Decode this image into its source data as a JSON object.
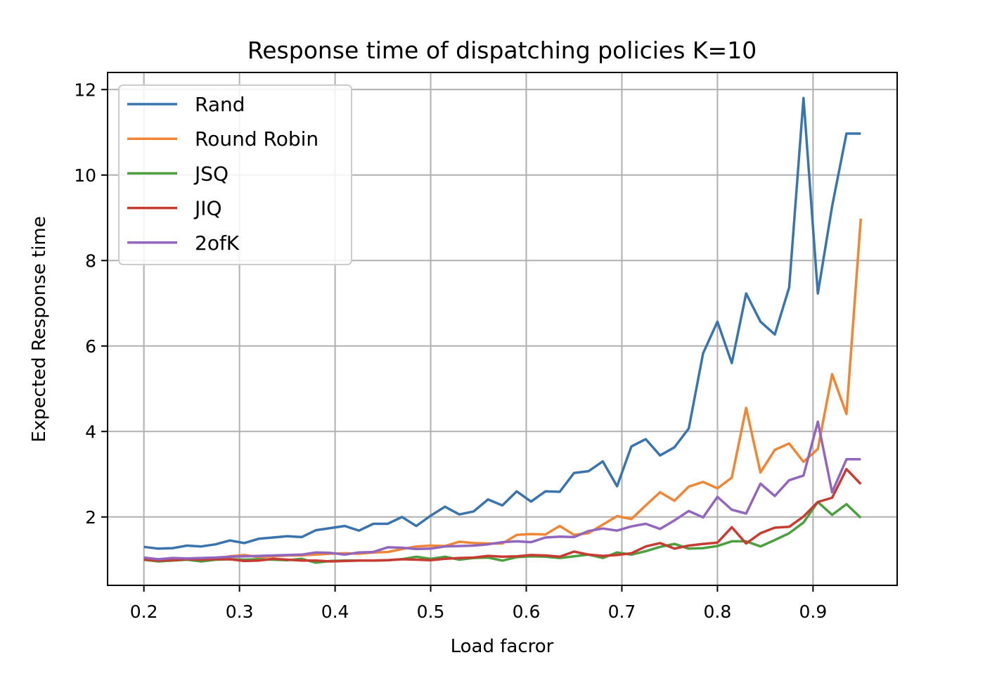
{
  "chart_data": {
    "type": "line",
    "title": "Response time of dispatching policies K=10",
    "xlabel": "Load facror",
    "ylabel": "Expected Response time",
    "xlim": [
      0.162,
      0.988
    ],
    "ylim": [
      0.4,
      12.4
    ],
    "xticks": [
      "0.2",
      "0.3",
      "0.4",
      "0.5",
      "0.6",
      "0.7",
      "0.8",
      "0.9"
    ],
    "yticks": [
      "2",
      "4",
      "6",
      "8",
      "10",
      "12"
    ],
    "grid": true,
    "legend_position": "upper-left",
    "x": [
      0.2,
      0.215,
      0.23,
      0.245,
      0.26,
      0.275,
      0.29,
      0.305,
      0.32,
      0.335,
      0.35,
      0.365,
      0.38,
      0.395,
      0.41,
      0.425,
      0.44,
      0.455,
      0.47,
      0.485,
      0.5,
      0.515,
      0.53,
      0.545,
      0.56,
      0.575,
      0.59,
      0.605,
      0.62,
      0.635,
      0.65,
      0.665,
      0.68,
      0.695,
      0.71,
      0.725,
      0.74,
      0.755,
      0.77,
      0.785,
      0.8,
      0.815,
      0.83,
      0.845,
      0.86,
      0.875,
      0.89,
      0.905,
      0.92,
      0.935,
      0.95
    ],
    "series": [
      {
        "name": "Rand",
        "color": "#3a74ad",
        "values": [
          1.3,
          1.26,
          1.27,
          1.33,
          1.31,
          1.36,
          1.45,
          1.39,
          1.49,
          1.52,
          1.55,
          1.53,
          1.69,
          1.74,
          1.79,
          1.68,
          1.84,
          1.84,
          2.0,
          1.79,
          2.03,
          2.24,
          2.06,
          2.13,
          2.41,
          2.27,
          2.6,
          2.36,
          2.6,
          2.59,
          3.03,
          3.07,
          3.3,
          2.72,
          3.65,
          3.82,
          3.44,
          3.63,
          4.07,
          5.83,
          6.57,
          5.6,
          7.23,
          6.57,
          6.27,
          7.37,
          11.8,
          7.23,
          9.27,
          10.97,
          10.97
        ]
      },
      {
        "name": "Round Robin",
        "color": "#ef8636",
        "values": [
          1.0,
          0.98,
          1.0,
          1.02,
          1.02,
          1.03,
          1.08,
          1.11,
          1.06,
          1.08,
          1.1,
          1.1,
          1.12,
          1.14,
          1.15,
          1.14,
          1.17,
          1.18,
          1.25,
          1.31,
          1.33,
          1.32,
          1.42,
          1.39,
          1.38,
          1.38,
          1.58,
          1.6,
          1.59,
          1.79,
          1.58,
          1.62,
          1.82,
          2.02,
          1.95,
          2.27,
          2.58,
          2.38,
          2.71,
          2.82,
          2.67,
          2.92,
          4.55,
          3.04,
          3.57,
          3.72,
          3.29,
          3.59,
          5.34,
          4.41,
          8.98
        ]
      },
      {
        "name": "JSQ",
        "color": "#4b9f3e",
        "values": [
          1.0,
          0.96,
          0.98,
          1.0,
          0.96,
          1.0,
          1.01,
          1.0,
          1.01,
          1.0,
          0.99,
          1.02,
          0.93,
          0.97,
          0.98,
          0.98,
          0.98,
          0.99,
          1.01,
          1.07,
          1.02,
          1.07,
          1.0,
          1.04,
          1.05,
          0.98,
          1.06,
          1.08,
          1.07,
          1.04,
          1.08,
          1.12,
          1.04,
          1.17,
          1.12,
          1.2,
          1.3,
          1.37,
          1.26,
          1.27,
          1.32,
          1.43,
          1.43,
          1.31,
          1.46,
          1.62,
          1.87,
          2.35,
          2.05,
          2.3,
          1.98
        ]
      },
      {
        "name": "JIQ",
        "color": "#c63b32",
        "values": [
          1.0,
          0.98,
          0.99,
          1.01,
          1.0,
          1.01,
          1.01,
          0.97,
          0.98,
          1.02,
          1.0,
          0.98,
          0.98,
          0.96,
          0.97,
          0.98,
          0.98,
          0.99,
          1.01,
          1.0,
          0.99,
          1.02,
          1.04,
          1.05,
          1.09,
          1.07,
          1.08,
          1.11,
          1.1,
          1.07,
          1.19,
          1.12,
          1.09,
          1.11,
          1.15,
          1.31,
          1.39,
          1.26,
          1.33,
          1.37,
          1.4,
          1.76,
          1.38,
          1.62,
          1.75,
          1.77,
          2.01,
          2.35,
          2.45,
          3.12,
          2.77
        ]
      },
      {
        "name": "2ofK",
        "color": "#9366bd",
        "values": [
          1.05,
          1.01,
          1.04,
          1.03,
          1.04,
          1.05,
          1.07,
          1.08,
          1.09,
          1.1,
          1.11,
          1.12,
          1.17,
          1.16,
          1.12,
          1.17,
          1.18,
          1.29,
          1.28,
          1.25,
          1.26,
          1.31,
          1.32,
          1.33,
          1.36,
          1.41,
          1.43,
          1.41,
          1.52,
          1.54,
          1.53,
          1.67,
          1.73,
          1.68,
          1.78,
          1.84,
          1.72,
          1.92,
          2.14,
          1.99,
          2.47,
          2.17,
          2.08,
          2.78,
          2.49,
          2.86,
          2.97,
          4.23,
          2.58,
          3.35,
          3.35
        ]
      }
    ]
  }
}
